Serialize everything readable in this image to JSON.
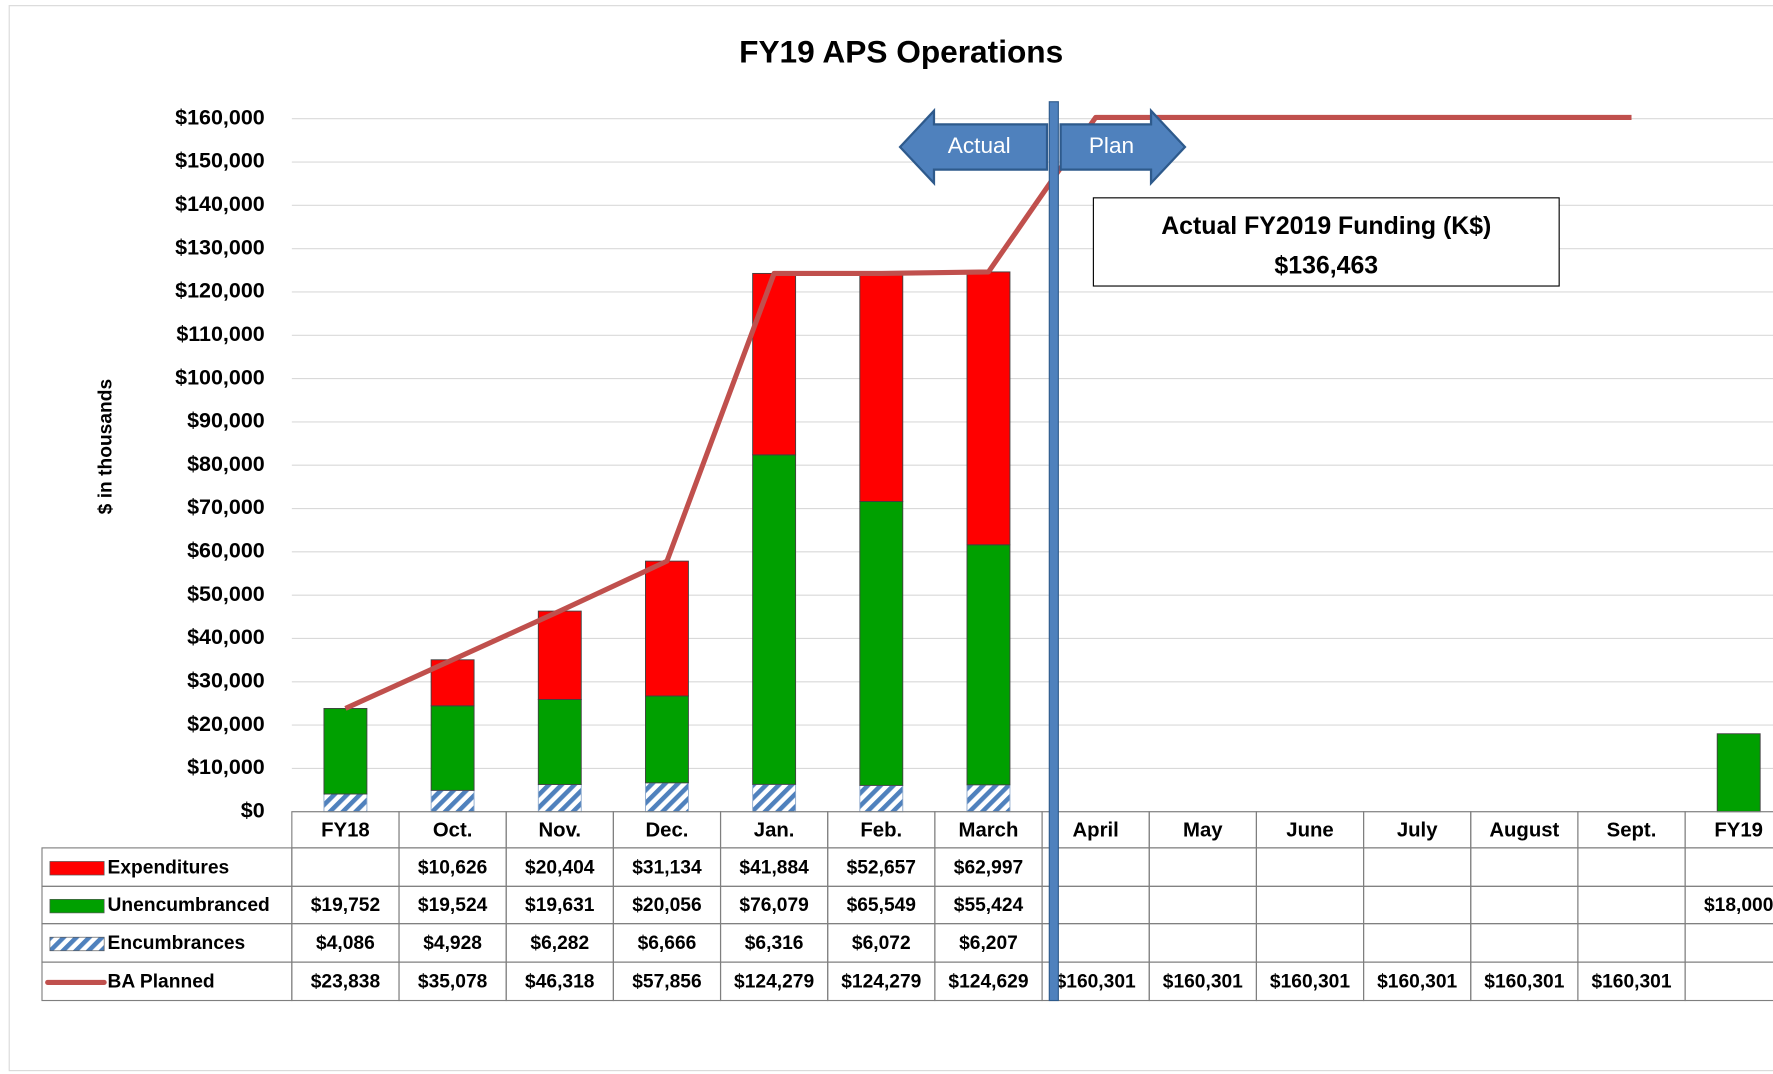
{
  "chart_data": {
    "type": "bar",
    "stacked": true,
    "title": "FY19 APS Operations",
    "y_label": "$ in thousands",
    "categories": [
      "FY18",
      "Oct.",
      "Nov.",
      "Dec.",
      "Jan.",
      "Feb.",
      "March",
      "April",
      "May",
      "June",
      "July",
      "August",
      "Sept.",
      "FY19"
    ],
    "series": [
      {
        "name": "Expenditures",
        "color": "#ff0000",
        "values": [
          null,
          10626,
          20404,
          31134,
          41884,
          52657,
          62997,
          null,
          null,
          null,
          null,
          null,
          null,
          null
        ],
        "value_labels": [
          null,
          "$10,626",
          "$20,404",
          "$31,134",
          "$41,884",
          "$52,657",
          "$62,997",
          null,
          null,
          null,
          null,
          null,
          null,
          null
        ]
      },
      {
        "name": "Unencumbranced",
        "color": "#00a000",
        "values": [
          19752,
          19524,
          19631,
          20056,
          76079,
          65549,
          55424,
          null,
          null,
          null,
          null,
          null,
          null,
          18000
        ],
        "value_labels": [
          "$19,752",
          "$19,524",
          "$19,631",
          "$20,056",
          "$76,079",
          "$65,549",
          "$55,424",
          null,
          null,
          null,
          null,
          null,
          null,
          "$18,000"
        ]
      },
      {
        "name": "Encumbrances",
        "color": "#4f81bd",
        "pattern": "hatch",
        "values": [
          4086,
          4928,
          6282,
          6666,
          6316,
          6072,
          6207,
          null,
          null,
          null,
          null,
          null,
          null,
          null
        ],
        "value_labels": [
          "$4,086",
          "$4,928",
          "$6,282",
          "$6,666",
          "$6,316",
          "$6,072",
          "$6,207",
          null,
          null,
          null,
          null,
          null,
          null,
          null
        ]
      },
      {
        "name": "BA Planned",
        "type": "line",
        "color": "#c0504d",
        "values": [
          23838,
          35078,
          46318,
          57856,
          124279,
          124279,
          124629,
          160301,
          160301,
          160301,
          160301,
          160301,
          160301,
          null
        ],
        "value_labels": [
          "$23,838",
          "$35,078",
          "$46,318",
          "$57,856",
          "$124,279",
          "$124,279",
          "$124,629",
          "$160,301",
          "$160,301",
          "$160,301",
          "$160,301",
          "$160,301",
          "$160,301",
          null
        ]
      }
    ],
    "ylim": [
      0,
      160000
    ],
    "yticks": [
      {
        "value": 0,
        "label": "$0"
      },
      {
        "value": 10000,
        "label": "$10,000"
      },
      {
        "value": 20000,
        "label": "$20,000"
      },
      {
        "value": 30000,
        "label": "$30,000"
      },
      {
        "value": 40000,
        "label": "$40,000"
      },
      {
        "value": 50000,
        "label": "$50,000"
      },
      {
        "value": 60000,
        "label": "$60,000"
      },
      {
        "value": 70000,
        "label": "$70,000"
      },
      {
        "value": 80000,
        "label": "$80,000"
      },
      {
        "value": 90000,
        "label": "$90,000"
      },
      {
        "value": 100000,
        "label": "$100,000"
      },
      {
        "value": 110000,
        "label": "$110,000"
      },
      {
        "value": 120000,
        "label": "$120,000"
      },
      {
        "value": 130000,
        "label": "$130,000"
      },
      {
        "value": 140000,
        "label": "$140,000"
      },
      {
        "value": 150000,
        "label": "$150,000"
      },
      {
        "value": 160000,
        "label": "$160,000"
      }
    ],
    "grid": true,
    "annotations": [
      "Actual",
      "Plan",
      "Actual FY2019 Funding (K$)",
      "$136,463"
    ]
  }
}
